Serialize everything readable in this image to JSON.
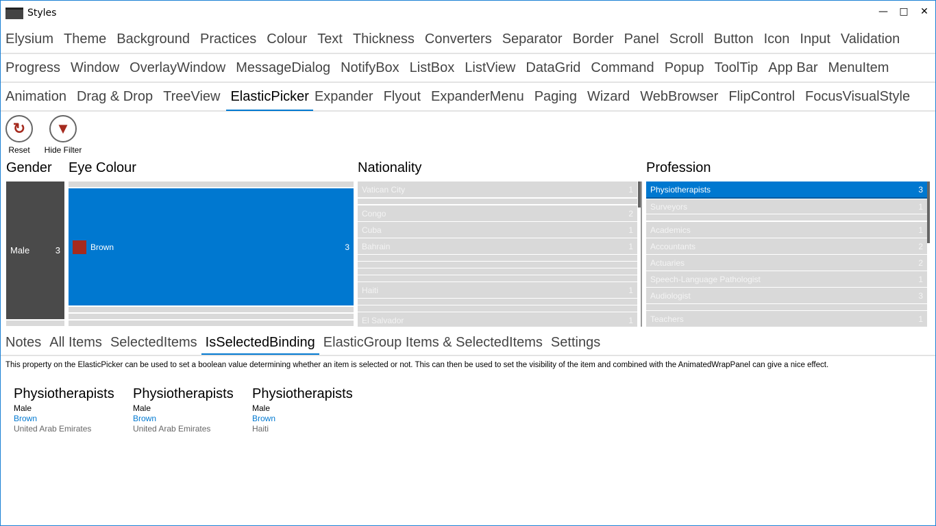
{
  "window": {
    "title": "Styles",
    "controls": [
      "—",
      "□",
      "✕"
    ]
  },
  "menu": {
    "row1": [
      "Elysium",
      "Theme",
      "Background",
      "Practices",
      "Colour",
      "Text",
      "Thickness",
      "Converters",
      "Separator",
      "Border",
      "Panel",
      "Scroll",
      "Button",
      "Icon",
      "Input",
      "Validation"
    ],
    "row2": [
      "Progress",
      "Window",
      "OverlayWindow",
      "MessageDialog",
      "NotifyBox",
      "ListBox",
      "ListView",
      "DataGrid",
      "Command",
      "Popup",
      "ToolTip",
      "App Bar",
      "MenuItem"
    ],
    "row3": [
      "Animation",
      "Drag & Drop",
      "TreeView",
      "ElasticPicker",
      "Expander",
      "Flyout",
      "ExpanderMenu",
      "Paging",
      "Wizard",
      "WebBrowser",
      "FlipControl",
      "FocusVisualStyle"
    ],
    "selected": "ElasticPicker"
  },
  "toolbar": {
    "reset": "Reset",
    "hide_filter": "Hide Filter"
  },
  "pickers": {
    "gender": {
      "title": "Gender",
      "items": [
        {
          "label": "Male",
          "count": "3"
        }
      ]
    },
    "eye": {
      "title": "Eye Colour",
      "items": [
        {
          "label": "Brown",
          "count": "3",
          "swatch": "#a52a1e"
        }
      ]
    },
    "nationality": {
      "title": "Nationality",
      "items": [
        {
          "label": "Vatican City",
          "count": "1"
        },
        {
          "label": "Congo",
          "count": "2"
        },
        {
          "label": "Cuba",
          "count": "1"
        },
        {
          "label": "Bahrain",
          "count": "1"
        },
        {
          "label": "Haiti",
          "count": "1"
        },
        {
          "label": "El Salvador",
          "count": "1"
        }
      ]
    },
    "profession": {
      "title": "Profession",
      "items": [
        {
          "label": "Physiotherapists",
          "count": "3",
          "selected": true
        },
        {
          "label": "Surveyors",
          "count": "1"
        },
        {
          "label": "Academics",
          "count": "1"
        },
        {
          "label": "Accountants",
          "count": "2"
        },
        {
          "label": "Actuaries",
          "count": "2"
        },
        {
          "label": "Speech-Language Pathologist",
          "count": "1"
        },
        {
          "label": "Audiologist",
          "count": "3"
        },
        {
          "label": "Teachers",
          "count": "1"
        }
      ]
    }
  },
  "tabs": [
    "Notes",
    "All Items",
    "SelectedItems",
    "IsSelectedBinding",
    "ElasticGroup Items & SelectedItems",
    "Settings"
  ],
  "selected_tab": "IsSelectedBinding",
  "description": "This property on the ElasticPicker can be used to set a boolean value determining whether an item is selected or not. This can then be used to set the visibility of the item and combined with the AnimatedWrapPanel can give a nice effect.",
  "cards": [
    {
      "profession": "Physiotherapists",
      "gender": "Male",
      "eye": "Brown",
      "nationality": "United Arab Emirates"
    },
    {
      "profession": "Physiotherapists",
      "gender": "Male",
      "eye": "Brown",
      "nationality": "United Arab Emirates"
    },
    {
      "profession": "Physiotherapists",
      "gender": "Male",
      "eye": "Brown",
      "nationality": "Haiti"
    }
  ],
  "colors": {
    "accent": "#0078d0",
    "gender_bg": "#4a4a4a",
    "row_bg": "#d9d9d9"
  }
}
